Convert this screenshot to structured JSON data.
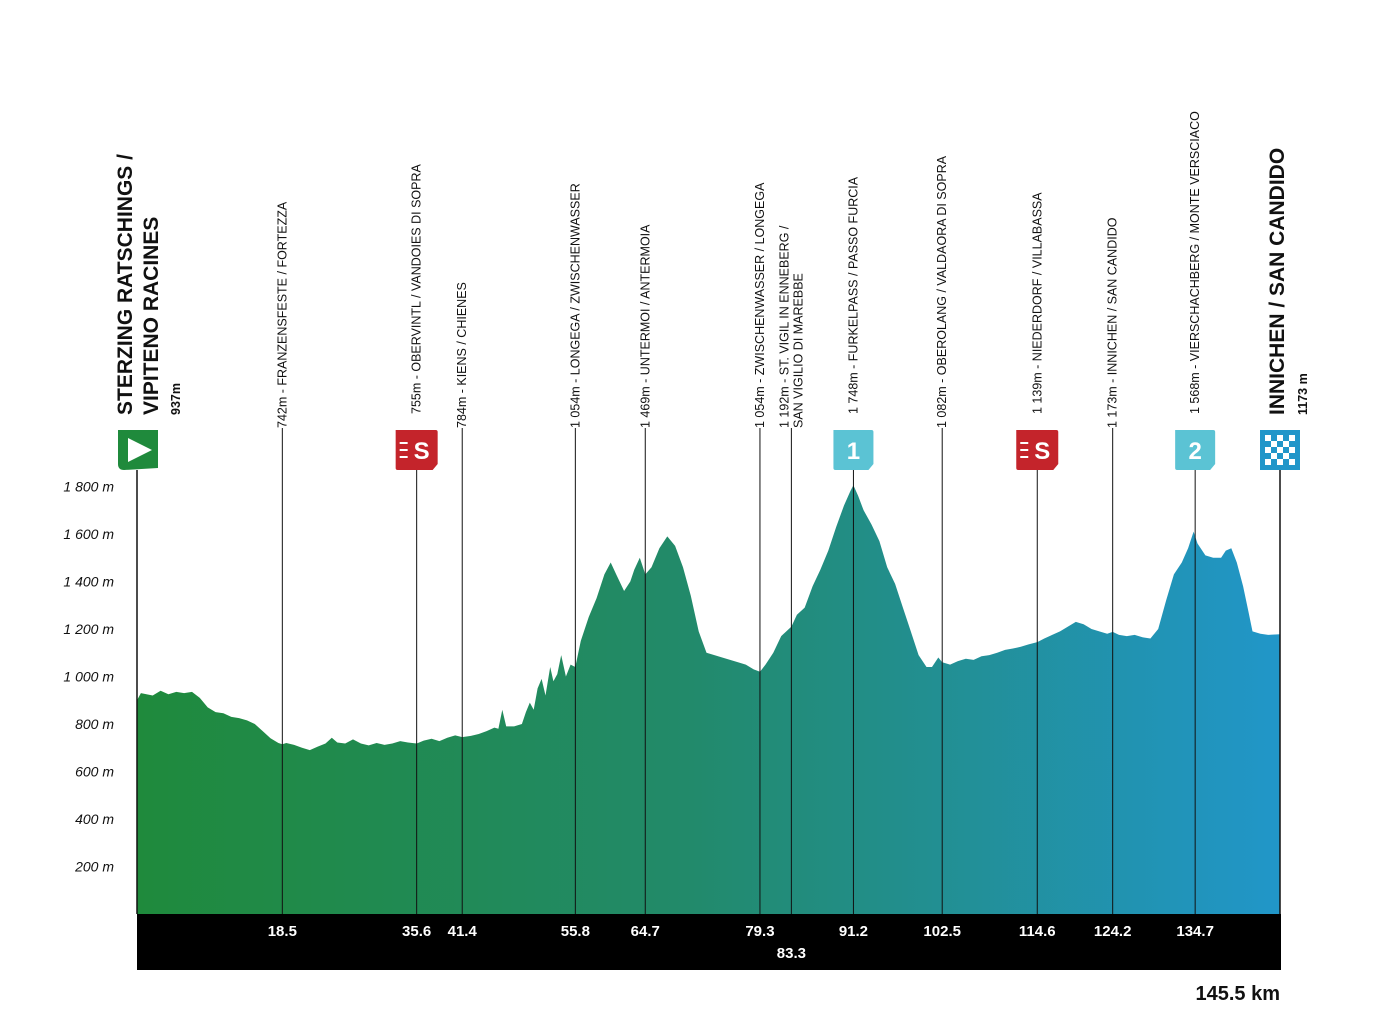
{
  "chart_data": {
    "type": "area",
    "title": "",
    "xlabel": "",
    "ylabel": "",
    "total_distance": "145.5 km",
    "xlim": [
      0,
      145.5
    ],
    "ylim": [
      0,
      1800
    ],
    "y_ticks": [
      "1 800 m",
      "1 600 m",
      "1 400 m",
      "1 200 m",
      "1 000 m",
      "800 m",
      "600 m",
      "400 m",
      "200 m"
    ],
    "y_tick_values": [
      1800,
      1600,
      1400,
      1200,
      1000,
      800,
      600,
      400,
      200
    ],
    "start": {
      "name_line1": "STERZING RATSCHINGS /",
      "name_line2": "VIPITENO RACINES",
      "altitude": "937m",
      "km": 0
    },
    "finish": {
      "name": "INNICHEN / SAN CANDIDO",
      "altitude": "1173 m",
      "km": 145.5
    },
    "waypoints": [
      {
        "km": 18.5,
        "km_label": "18.5",
        "lines": [
          "742m - FRANZENSFESTE / FORTEZZA"
        ],
        "badge": null
      },
      {
        "km": 35.6,
        "km_label": "35.6",
        "lines": [
          "755m - OBERVINTL / VANDOIES DI SOPRA"
        ],
        "badge": "sprint"
      },
      {
        "km": 41.4,
        "km_label": "41.4",
        "lines": [
          "784m - KIENS / CHIENES"
        ],
        "badge": null
      },
      {
        "km": 55.8,
        "km_label": "55.8",
        "lines": [
          "1 054m - LONGEGA / ZWISCHENWASSER"
        ],
        "badge": null
      },
      {
        "km": 64.7,
        "km_label": "64.7",
        "lines": [
          "1 469m - UNTERMOI / ANTERMOIA"
        ],
        "badge": null
      },
      {
        "km": 79.3,
        "km_label": "79.3",
        "lines": [
          "1 054m - ZWISCHENWASSER / LONGEGA"
        ],
        "badge": null
      },
      {
        "km": 83.3,
        "km_label": "83.3",
        "lines": [
          "1 192m - ST. VIGIL IN ENNEBERG /",
          "SAN VIGILIO DI MAREBBE"
        ],
        "badge": null
      },
      {
        "km": 91.2,
        "km_label": "91.2",
        "lines": [
          "1 748m - FURKELPASS / PASSO FURCIA"
        ],
        "badge": "climb",
        "badge_text": "1"
      },
      {
        "km": 102.5,
        "km_label": "102.5",
        "lines": [
          "1 082m - OBEROLANG / VALDAORA DI SOPRA"
        ],
        "badge": null
      },
      {
        "km": 114.6,
        "km_label": "114.6",
        "lines": [
          "1 139m - NIEDERDORF / VILLABASSA"
        ],
        "badge": "sprint"
      },
      {
        "km": 124.2,
        "km_label": "124.2",
        "lines": [
          "1 173m - INNICHEN / SAN CANDIDO"
        ],
        "badge": null
      },
      {
        "km": 134.7,
        "km_label": "134.7",
        "lines": [
          "1 568m - VIERSCHACHBERG / MONTE VERSCIACO"
        ],
        "badge": "climb",
        "badge_text": "2"
      }
    ],
    "sprint_badge_text": "S",
    "colors": {
      "start": "#1f8a3c",
      "finish": "#2196c9",
      "sprint": "#c4242b",
      "climb": "#5bc3d4",
      "bar": "#000000"
    },
    "profile": [
      [
        0,
        900
      ],
      [
        0.5,
        930
      ],
      [
        2,
        920
      ],
      [
        3,
        940
      ],
      [
        4,
        925
      ],
      [
        5,
        935
      ],
      [
        6,
        930
      ],
      [
        7,
        935
      ],
      [
        8,
        910
      ],
      [
        9,
        870
      ],
      [
        10,
        850
      ],
      [
        11,
        845
      ],
      [
        12,
        830
      ],
      [
        13,
        825
      ],
      [
        14,
        815
      ],
      [
        15,
        800
      ],
      [
        16,
        770
      ],
      [
        17,
        740
      ],
      [
        18,
        720
      ],
      [
        18.5,
        715
      ],
      [
        19,
        720
      ],
      [
        20,
        712
      ],
      [
        21,
        700
      ],
      [
        22,
        690
      ],
      [
        23,
        705
      ],
      [
        24,
        718
      ],
      [
        24.8,
        742
      ],
      [
        25.5,
        722
      ],
      [
        26.5,
        718
      ],
      [
        27.5,
        735
      ],
      [
        28.5,
        718
      ],
      [
        29.5,
        710
      ],
      [
        30.5,
        720
      ],
      [
        31.5,
        712
      ],
      [
        32.5,
        718
      ],
      [
        33.5,
        728
      ],
      [
        34.5,
        722
      ],
      [
        35.6,
        718
      ],
      [
        36.5,
        730
      ],
      [
        37.5,
        738
      ],
      [
        38.5,
        728
      ],
      [
        39.5,
        742
      ],
      [
        40.5,
        752
      ],
      [
        41.4,
        745
      ],
      [
        42.5,
        750
      ],
      [
        43.5,
        758
      ],
      [
        44.5,
        770
      ],
      [
        45.5,
        785
      ],
      [
        46,
        780
      ],
      [
        46.5,
        860
      ],
      [
        47,
        790
      ],
      [
        48,
        790
      ],
      [
        49,
        800
      ],
      [
        49.5,
        850
      ],
      [
        50,
        890
      ],
      [
        50.5,
        860
      ],
      [
        51,
        950
      ],
      [
        51.5,
        990
      ],
      [
        52,
        920
      ],
      [
        52.6,
        1040
      ],
      [
        53,
        980
      ],
      [
        53.5,
        1010
      ],
      [
        54,
        1090
      ],
      [
        54.6,
        1000
      ],
      [
        55.2,
        1050
      ],
      [
        55.8,
        1040
      ],
      [
        56.5,
        1150
      ],
      [
        57.5,
        1250
      ],
      [
        58.5,
        1330
      ],
      [
        59.5,
        1430
      ],
      [
        60.3,
        1480
      ],
      [
        61,
        1430
      ],
      [
        62,
        1360
      ],
      [
        62.8,
        1400
      ],
      [
        63.3,
        1450
      ],
      [
        64,
        1500
      ],
      [
        64.7,
        1430
      ],
      [
        65.5,
        1460
      ],
      [
        66.5,
        1540
      ],
      [
        67.5,
        1590
      ],
      [
        68.5,
        1550
      ],
      [
        69.5,
        1460
      ],
      [
        70.5,
        1340
      ],
      [
        71.5,
        1190
      ],
      [
        72.5,
        1100
      ],
      [
        73.5,
        1090
      ],
      [
        74.5,
        1080
      ],
      [
        75.5,
        1070
      ],
      [
        76.5,
        1060
      ],
      [
        77.5,
        1050
      ],
      [
        78.5,
        1030
      ],
      [
        79.3,
        1020
      ],
      [
        80,
        1050
      ],
      [
        81,
        1100
      ],
      [
        82,
        1170
      ],
      [
        83.3,
        1210
      ],
      [
        84,
        1260
      ],
      [
        85,
        1290
      ],
      [
        86,
        1380
      ],
      [
        87,
        1450
      ],
      [
        88,
        1530
      ],
      [
        89,
        1630
      ],
      [
        90,
        1720
      ],
      [
        90.8,
        1780
      ],
      [
        91.2,
        1805
      ],
      [
        91.8,
        1760
      ],
      [
        92.5,
        1700
      ],
      [
        93.5,
        1640
      ],
      [
        94.5,
        1570
      ],
      [
        95.5,
        1460
      ],
      [
        96.5,
        1390
      ],
      [
        97.5,
        1290
      ],
      [
        98.5,
        1190
      ],
      [
        99.5,
        1090
      ],
      [
        100.5,
        1040
      ],
      [
        101.2,
        1040
      ],
      [
        102,
        1080
      ],
      [
        102.5,
        1060
      ],
      [
        103.5,
        1050
      ],
      [
        104.5,
        1065
      ],
      [
        105.5,
        1075
      ],
      [
        106.5,
        1070
      ],
      [
        107.5,
        1085
      ],
      [
        108.5,
        1090
      ],
      [
        109.5,
        1100
      ],
      [
        110.5,
        1112
      ],
      [
        111.5,
        1118
      ],
      [
        112.5,
        1125
      ],
      [
        113.5,
        1135
      ],
      [
        114.6,
        1145
      ],
      [
        115.5,
        1160
      ],
      [
        116.5,
        1175
      ],
      [
        117.5,
        1190
      ],
      [
        118.5,
        1210
      ],
      [
        119.5,
        1230
      ],
      [
        120.5,
        1220
      ],
      [
        121.5,
        1200
      ],
      [
        122.5,
        1190
      ],
      [
        123.5,
        1180
      ],
      [
        124.2,
        1188
      ],
      [
        125,
        1175
      ],
      [
        126,
        1170
      ],
      [
        127,
        1175
      ],
      [
        128,
        1165
      ],
      [
        129,
        1160
      ],
      [
        130,
        1200
      ],
      [
        131,
        1320
      ],
      [
        132,
        1430
      ],
      [
        133,
        1480
      ],
      [
        133.8,
        1540
      ],
      [
        134.5,
        1610
      ],
      [
        135,
        1560
      ],
      [
        136,
        1510
      ],
      [
        137,
        1500
      ],
      [
        138,
        1500
      ],
      [
        138.6,
        1530
      ],
      [
        139.3,
        1540
      ],
      [
        140,
        1480
      ],
      [
        140.8,
        1380
      ],
      [
        141.5,
        1270
      ],
      [
        142,
        1190
      ],
      [
        143,
        1180
      ],
      [
        144,
        1175
      ],
      [
        145.5,
        1178
      ]
    ]
  }
}
